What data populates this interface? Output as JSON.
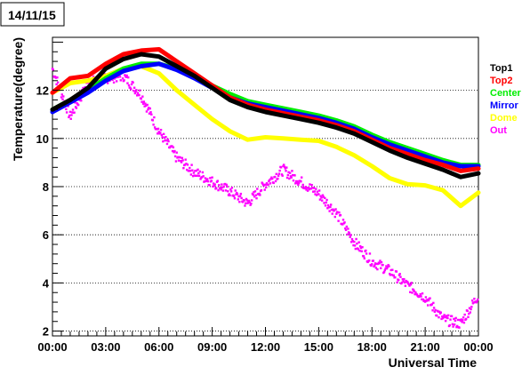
{
  "chart_data": {
    "type": "line",
    "title": "14/11/15",
    "xlabel": "Universal Time",
    "ylabel": "Temperature(degree)",
    "xlim": [
      0,
      24
    ],
    "ylim": [
      1.8,
      14.2
    ],
    "grid": "horizontal dotted",
    "legend_position": "right",
    "x_ticks": [
      "00:00",
      "03:00",
      "06:00",
      "09:00",
      "12:00",
      "15:00",
      "18:00",
      "21:00",
      "00:00"
    ],
    "y_ticks": [
      "2",
      "4",
      "6",
      "8",
      "10",
      "12"
    ],
    "x_tick_values": [
      0,
      3,
      6,
      9,
      12,
      15,
      18,
      21,
      24
    ],
    "y_tick_values": [
      2,
      4,
      6,
      8,
      10,
      12
    ],
    "x": [
      0,
      1,
      2,
      3,
      4,
      5,
      6,
      7,
      8,
      9,
      10,
      11,
      12,
      13,
      14,
      15,
      16,
      17,
      18,
      19,
      20,
      21,
      22,
      23,
      24
    ],
    "series": [
      {
        "name": "Top1",
        "color": "#000000",
        "values": [
          11.2,
          11.6,
          12.1,
          12.9,
          13.3,
          13.5,
          13.4,
          13.0,
          12.6,
          12.1,
          11.6,
          11.3,
          11.1,
          10.95,
          10.8,
          10.65,
          10.45,
          10.2,
          9.85,
          9.5,
          9.2,
          8.95,
          8.7,
          8.4,
          8.55
        ]
      },
      {
        "name": "Top2",
        "color": "#ff0000",
        "values": [
          11.9,
          12.5,
          12.6,
          13.1,
          13.5,
          13.65,
          13.7,
          13.2,
          12.7,
          12.2,
          11.7,
          11.4,
          11.2,
          11.05,
          10.9,
          10.75,
          10.55,
          10.3,
          9.95,
          9.6,
          9.35,
          9.1,
          8.9,
          8.65,
          8.75
        ]
      },
      {
        "name": "Center",
        "color": "#00ee00",
        "values": [
          11.2,
          11.6,
          12.0,
          12.5,
          12.9,
          13.1,
          13.1,
          12.9,
          12.6,
          12.2,
          11.85,
          11.55,
          11.4,
          11.25,
          11.1,
          10.95,
          10.75,
          10.5,
          10.15,
          9.85,
          9.6,
          9.35,
          9.1,
          8.9,
          8.9
        ]
      },
      {
        "name": "Mirror",
        "color": "#0000ff",
        "values": [
          11.1,
          11.5,
          11.9,
          12.4,
          12.8,
          13.0,
          13.1,
          12.85,
          12.5,
          12.1,
          11.7,
          11.45,
          11.3,
          11.15,
          11.0,
          10.85,
          10.65,
          10.4,
          10.05,
          9.75,
          9.5,
          9.25,
          9.0,
          8.85,
          8.85
        ]
      },
      {
        "name": "Dome",
        "color": "#ffff00",
        "values": [
          11.9,
          12.3,
          12.4,
          12.6,
          12.9,
          13.0,
          12.7,
          12.0,
          11.4,
          10.8,
          10.3,
          9.95,
          10.05,
          10.0,
          9.95,
          9.9,
          9.65,
          9.3,
          8.85,
          8.35,
          8.1,
          8.05,
          7.85,
          7.2,
          7.75
        ]
      },
      {
        "name": "Out",
        "color": "#ff00ff",
        "values": [
          12.9,
          10.9,
          12.3,
          12.5,
          12.6,
          11.8,
          10.3,
          9.2,
          8.6,
          8.2,
          7.8,
          7.3,
          8.1,
          8.7,
          8.2,
          7.7,
          6.9,
          5.7,
          4.9,
          4.5,
          3.9,
          3.4,
          2.5,
          2.3,
          3.5
        ]
      }
    ],
    "annotation_box": "14/11/15"
  }
}
